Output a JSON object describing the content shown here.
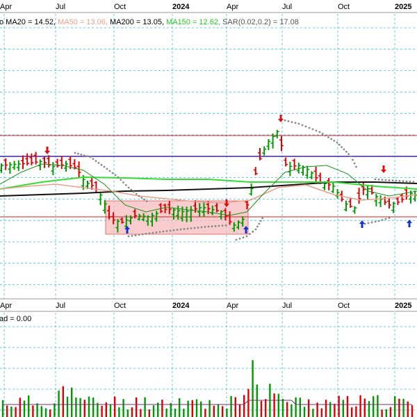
{
  "chart_data": {
    "type": "candlestick",
    "x_tick_labels": [
      {
        "label": "Apr",
        "bold": false
      },
      {
        "label": "Jul",
        "bold": false
      },
      {
        "label": "Oct",
        "bold": false
      },
      {
        "label": "2024",
        "bold": true
      },
      {
        "label": "Apr",
        "bold": false
      },
      {
        "label": "Jul",
        "bold": false
      },
      {
        "label": "Oct",
        "bold": false
      },
      {
        "label": "2025",
        "bold": true
      }
    ],
    "legend": [
      {
        "text": "o MA20 = 14.52, ",
        "color": "#000000"
      },
      {
        "text": "MA50 = 13.06, ",
        "color": "#e8a08a"
      },
      {
        "text": "MA200 = 13.05, ",
        "color": "#000000"
      },
      {
        "text": "MA150 = 12.62, ",
        "color": "#22cc22"
      },
      {
        "text": "SAR(0.02,0.2) = 17.08",
        "color": "#555555"
      }
    ],
    "lower_panel_label": "ad = 0.00",
    "colors": {
      "up": "#009900",
      "down": "#dd0000",
      "ma20": "#1a8f1a",
      "ma50": "#e8a08a",
      "ma150": "#33dd33",
      "ma200": "#111111",
      "sar": "#888888",
      "hline_red": "#cc2222",
      "hline_purple": "#4422aa",
      "box_fill": "#f6b8b8",
      "arrow_up": "#1133cc",
      "arrow_down": "#dd1111",
      "volume_avg": "#7a2a7a"
    }
  }
}
